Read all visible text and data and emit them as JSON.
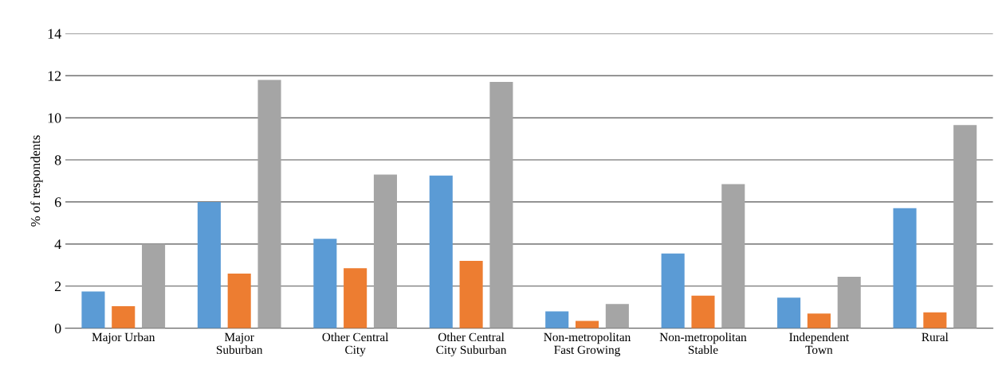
{
  "chart_data": {
    "type": "bar",
    "ylabel": "% of respondents",
    "categories": [
      "Major Urban",
      "Major\nSuburban",
      "Other Central\nCity",
      "Other Central\nCity Suburban",
      "Non-metropolitan\nFast Growing",
      "Non-metropolitan\nStable",
      "Independent\nTown",
      "Rural"
    ],
    "series": [
      {
        "color": "#5b9bd5",
        "values": [
          1.75,
          6.0,
          4.25,
          7.25,
          0.8,
          3.55,
          1.45,
          5.7
        ]
      },
      {
        "color": "#ed7d31",
        "values": [
          1.05,
          2.6,
          2.85,
          3.2,
          0.35,
          1.55,
          0.7,
          0.75
        ]
      },
      {
        "color": "#a5a5a5",
        "values": [
          4.0,
          11.8,
          7.3,
          11.7,
          1.15,
          6.85,
          2.45,
          9.65
        ]
      }
    ],
    "ylim": [
      0,
      14
    ],
    "yticks": [
      0,
      2,
      4,
      6,
      8,
      10,
      12,
      14
    ],
    "grid": "y"
  }
}
